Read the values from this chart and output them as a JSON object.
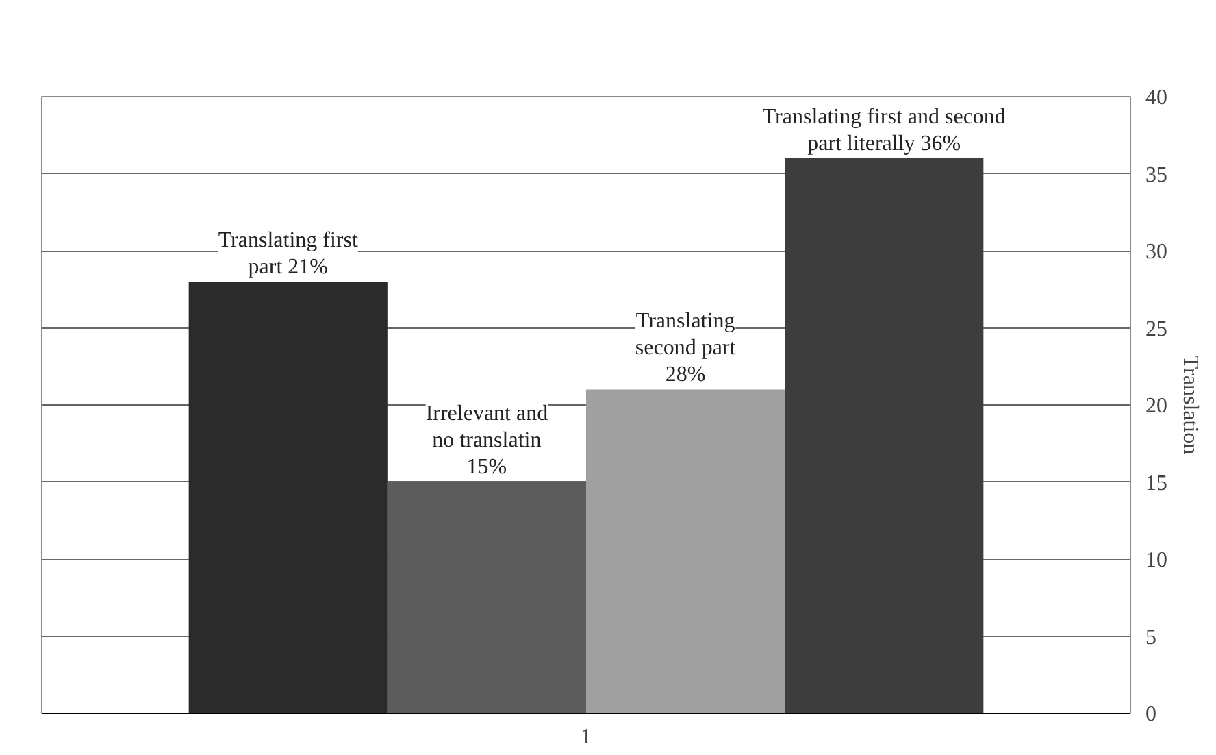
{
  "chart_data": {
    "type": "bar",
    "categories": [
      "1"
    ],
    "ylabel": "Translation",
    "ylim": [
      0,
      40
    ],
    "yticks": [
      0,
      5,
      10,
      15,
      20,
      25,
      30,
      35,
      40
    ],
    "grid": "y",
    "series": [
      {
        "color": "#2b2b2b",
        "values": [
          28
        ],
        "value_labels": [
          "Translating first\npart 21%"
        ]
      },
      {
        "color": "#5c5c5c",
        "values": [
          15
        ],
        "value_labels": [
          "Irrelevant and\nno translatin\n15%"
        ]
      },
      {
        "color": "#a0a0a0",
        "values": [
          21
        ],
        "value_labels": [
          "Translating\nsecond part\n28%"
        ]
      },
      {
        "color": "#3d3d3d",
        "values": [
          36
        ],
        "value_labels": [
          "Translating first and second\npart literally 36%"
        ]
      }
    ]
  }
}
